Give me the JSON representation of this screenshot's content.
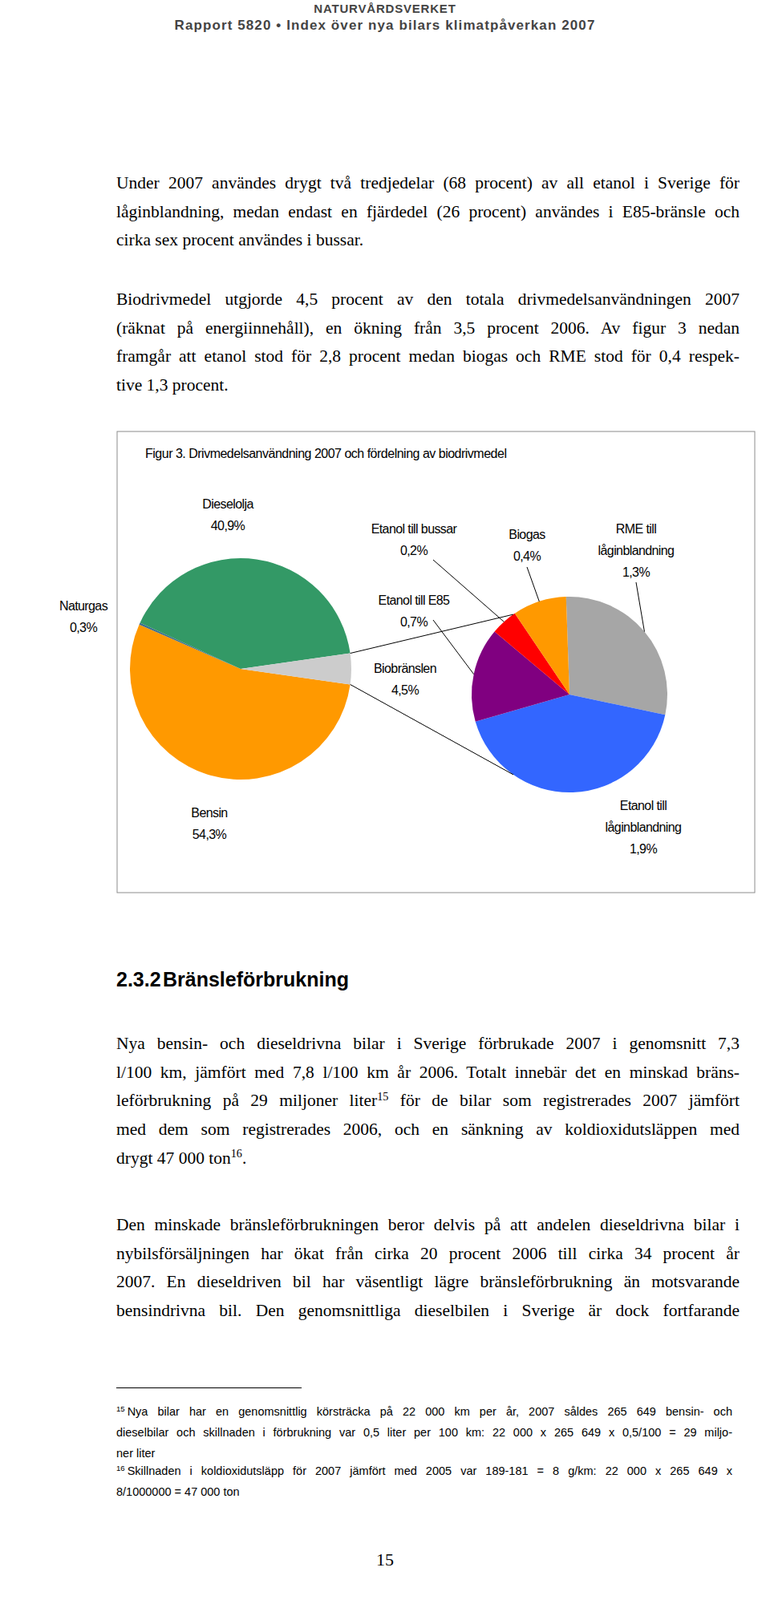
{
  "header": {
    "org": "NATURVÅRDSVERKET",
    "report": "Rapport 5820 • Index över nya bilars klimatpåverkan 2007"
  },
  "paragraphs_top": [
    {
      "lines": [
        "Under 2007 användes drygt två tredjedelar (68 procent) av all etanol i Sverige för",
        "låginblandning, medan endast en fjärdedel (26 procent) användes i E85-bränsle och",
        "cirka sex procent användes i bussar."
      ]
    },
    {
      "lines": [
        "Biodrivmedel utgjorde 4,5 procent av den totala drivmedelsanvändningen 2007",
        "(räknat på energiinnehåll), en ökning från 3,5 procent 2006. Av figur 3 nedan",
        "framgår att etanol stod för 2,8 procent medan biogas och RME stod för 0,4 respek-",
        "tive 1,3 procent."
      ]
    }
  ],
  "chart_data": [
    {
      "type": "pie",
      "title": "Figur 3. Drivmedelsanvändning 2007 och fördelning av biodrivmedel",
      "categories": [
        "Bensin",
        "Naturgas",
        "Dieselolja",
        "Biobränslen"
      ],
      "values": [
        54.3,
        0.3,
        40.9,
        4.5
      ],
      "value_labels": [
        "54,3%",
        "0,3%",
        "40,9%",
        "4,5%"
      ],
      "colors": [
        "#FF9900",
        "#3B6E8F",
        "#339966",
        "#CCCCCC"
      ],
      "data_labels": true
    },
    {
      "type": "pie",
      "categories": [
        "RME till låginblandning",
        "Etanol till låginblandning",
        "Etanol till E85",
        "Etanol till bussar",
        "Biogas"
      ],
      "values": [
        1.3,
        1.9,
        0.7,
        0.2,
        0.4
      ],
      "value_labels": [
        "1,3%",
        "1,9%",
        "0,7%",
        "0,2%",
        "0,4%"
      ],
      "colors": [
        "#A6A6A6",
        "#3366FF",
        "#800080",
        "#FF0000",
        "#FF9900"
      ],
      "data_labels": true
    }
  ],
  "section": {
    "number": "2.3.2",
    "title": "Bränsleförbrukning"
  },
  "paragraphs_bottom": [
    {
      "lines": [
        "Nya bensin- och dieseldrivna bilar i Sverige förbrukade 2007 i genomsnitt 7,3",
        "l/100 km, jämfört med 7,8 l/100 km år 2006. Totalt innebär det en minskad bräns-",
        [
          "leförbrukning på 29 miljoner liter",
          {
            "sup": "15"
          },
          " för de bilar som registrerades 2007 jämfört"
        ],
        "med dem som registrerades 2006, och en sänkning av koldioxidutsläppen med",
        [
          "drygt 47 000 ton",
          {
            "sup": "16"
          },
          "."
        ]
      ]
    },
    {
      "lines": [
        "Den minskade bränsleförbrukningen beror delvis på att andelen dieseldrivna bilar i",
        "nybilsförsäljningen har ökat från cirka 20 procent 2006 till cirka 34 procent år",
        "2007. En dieseldriven bil har väsentligt lägre bränsleförbrukning än motsvarande",
        "bensindrivna bil. Den genomsnittliga dieselbilen i Sverige är dock fortfarande"
      ]
    }
  ],
  "footnotes": [
    {
      "lines": [
        [
          {
            "sup": "15"
          },
          "Nya bilar har en genomsnittlig körsträcka på 22 000 km per år, 2007 såldes 265 649 bensin- och"
        ],
        "dieselbilar och skillnaden i förbrukning var 0,5 liter per 100 km: 22 000 x 265 649 x 0,5/100 = 29 miljo-",
        "ner liter"
      ]
    },
    {
      "lines": [
        [
          {
            "sup": "16"
          },
          "Skillnaden i koldioxidutsläpp för 2007 jämfört med 2005 var 189-181 = 8 g/km: 22 000 x 265 649 x"
        ],
        "8/1000000 = 47 000 ton"
      ]
    }
  ],
  "page_number": "15"
}
